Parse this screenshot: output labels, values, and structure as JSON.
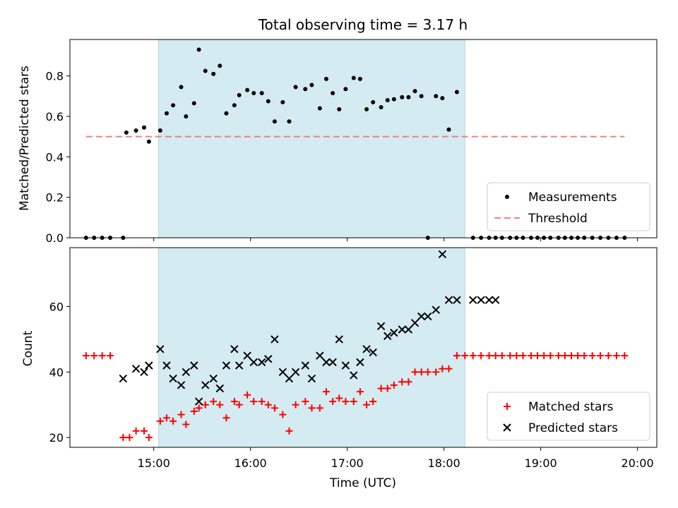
{
  "chart_data": [
    {
      "type": "scatter",
      "title": "Total observing time = 3.17 h",
      "xlabel": "",
      "ylabel": "Matched/Predicted stars",
      "xlim": [
        "14:08",
        "20:12"
      ],
      "ylim": [
        0,
        0.98
      ],
      "yticks": [
        0.0,
        0.2,
        0.4,
        0.6,
        0.8
      ],
      "ytick_labels": [
        "0.0",
        "0.2",
        "0.4",
        "0.6",
        "0.8"
      ],
      "xticks": [
        "15:00",
        "16:00",
        "17:00",
        "18:00",
        "19:00",
        "20:00"
      ],
      "highlight_span": [
        "15:03",
        "18:13"
      ],
      "highlight_color": "#d4ebf1",
      "legend": {
        "position": "lower right",
        "entries": [
          "Measurements",
          "Threshold"
        ]
      },
      "series": [
        {
          "name": "Measurements",
          "marker": "dot",
          "color": "#000000",
          "x": [
            "14:18",
            "14:23",
            "14:28",
            "14:33",
            "14:43",
            "14:41",
            "14:49",
            "14:54",
            "14:57",
            "15:04",
            "15:08",
            "15:12",
            "15:17",
            "15:20",
            "15:25",
            "15:28",
            "15:32",
            "15:37",
            "15:41",
            "15:45",
            "15:50",
            "15:53",
            "15:58",
            "16:02",
            "16:07",
            "16:11",
            "16:15",
            "16:20",
            "16:24",
            "16:28",
            "16:34",
            "16:38",
            "16:43",
            "16:47",
            "16:51",
            "16:55",
            "16:59",
            "17:04",
            "17:08",
            "17:12",
            "17:16",
            "17:21",
            "17:25",
            "17:29",
            "17:34",
            "17:38",
            "17:42",
            "17:46",
            "17:50",
            "17:55",
            "17:59",
            "18:03",
            "18:08",
            "18:18",
            "18:23",
            "18:28",
            "18:32",
            "18:36",
            "18:41",
            "18:45",
            "18:49",
            "18:54",
            "18:58",
            "19:02",
            "19:06",
            "19:11",
            "19:15",
            "19:19",
            "19:23",
            "19:27",
            "19:32",
            "19:37",
            "19:42",
            "19:47",
            "19:52"
          ],
          "y": [
            0.0,
            0.0,
            0.0,
            0.0,
            0.52,
            0.0,
            0.53,
            0.545,
            0.475,
            0.53,
            0.615,
            0.655,
            0.745,
            0.6,
            0.665,
            0.93,
            0.825,
            0.81,
            0.85,
            0.615,
            0.655,
            0.705,
            0.73,
            0.715,
            0.715,
            0.675,
            0.575,
            0.67,
            0.575,
            0.745,
            0.735,
            0.755,
            0.64,
            0.785,
            0.715,
            0.635,
            0.735,
            0.79,
            0.785,
            0.635,
            0.67,
            0.645,
            0.68,
            0.685,
            0.695,
            0.695,
            0.725,
            0.7,
            0.0,
            0.7,
            0.69,
            0.535,
            0.72,
            0.0,
            0.0,
            0.0,
            0.0,
            0.0,
            0.0,
            0.0,
            0.0,
            0.0,
            0.0,
            0.0,
            0.0,
            0.0,
            0.0,
            0.0,
            0.0,
            0.0,
            0.0,
            0.0,
            0.0,
            0.0,
            0.0
          ]
        },
        {
          "name": "Threshold",
          "type": "line",
          "style": "dashed",
          "color": "#f08080",
          "x": [
            "14:18",
            "19:52"
          ],
          "y": [
            0.5,
            0.5
          ]
        }
      ]
    },
    {
      "type": "scatter",
      "title": "",
      "xlabel": "Time (UTC)",
      "ylabel": "Count",
      "xlim": [
        "14:08",
        "20:12"
      ],
      "ylim": [
        17,
        78
      ],
      "yticks": [
        20,
        40,
        60
      ],
      "ytick_labels": [
        "20",
        "40",
        "60"
      ],
      "xticks": [
        "15:00",
        "16:00",
        "17:00",
        "18:00",
        "19:00",
        "20:00"
      ],
      "highlight_span": [
        "15:03",
        "18:13"
      ],
      "highlight_color": "#d4ebf1",
      "legend": {
        "position": "lower right",
        "entries": [
          "Matched stars",
          "Predicted stars"
        ]
      },
      "series": [
        {
          "name": "Matched stars",
          "marker": "plus",
          "color": "#ff0000",
          "x": [
            "14:18",
            "14:23",
            "14:28",
            "14:33",
            "14:41",
            "14:45",
            "14:49",
            "14:54",
            "14:57",
            "15:04",
            "15:08",
            "15:12",
            "15:17",
            "15:20",
            "15:25",
            "15:28",
            "15:32",
            "15:37",
            "15:41",
            "15:45",
            "15:50",
            "15:53",
            "15:58",
            "16:02",
            "16:07",
            "16:11",
            "16:15",
            "16:20",
            "16:24",
            "16:28",
            "16:34",
            "16:38",
            "16:43",
            "16:47",
            "16:51",
            "16:55",
            "16:59",
            "17:04",
            "17:08",
            "17:12",
            "17:16",
            "17:21",
            "17:25",
            "17:29",
            "17:34",
            "17:38",
            "17:42",
            "17:46",
            "17:50",
            "17:55",
            "17:59",
            "18:03",
            "18:08",
            "18:13",
            "18:18",
            "18:23",
            "18:28",
            "18:32",
            "18:36",
            "18:41",
            "18:45",
            "18:49",
            "18:54",
            "18:58",
            "19:02",
            "19:06",
            "19:11",
            "19:15",
            "19:19",
            "19:23",
            "19:27",
            "19:32",
            "19:37",
            "19:42",
            "19:47",
            "19:52"
          ],
          "y": [
            45,
            45,
            45,
            45,
            20,
            20,
            22,
            22,
            20,
            25,
            26,
            25,
            27,
            24,
            28,
            29,
            30,
            31,
            30,
            26,
            31,
            30,
            33,
            31,
            31,
            30,
            29,
            27,
            22,
            30,
            31,
            29,
            29,
            34,
            31,
            32,
            31,
            31,
            34,
            30,
            31,
            35,
            35,
            36,
            37,
            37,
            40,
            40,
            40,
            40,
            41,
            41,
            45,
            45,
            45,
            45,
            45,
            45,
            45,
            45,
            45,
            45,
            45,
            45,
            45,
            45,
            45,
            45,
            45,
            45,
            45,
            45,
            45,
            45,
            45,
            45
          ]
        },
        {
          "name": "Predicted stars",
          "marker": "x",
          "color": "#000000",
          "x": [
            "14:41",
            "14:49",
            "14:54",
            "14:57",
            "15:04",
            "15:08",
            "15:12",
            "15:17",
            "15:20",
            "15:25",
            "15:28",
            "15:32",
            "15:37",
            "15:41",
            "15:45",
            "15:50",
            "15:53",
            "15:58",
            "16:02",
            "16:07",
            "16:11",
            "16:15",
            "16:20",
            "16:24",
            "16:28",
            "16:34",
            "16:38",
            "16:43",
            "16:47",
            "16:51",
            "16:55",
            "16:59",
            "17:04",
            "17:08",
            "17:12",
            "17:16",
            "17:21",
            "17:25",
            "17:29",
            "17:34",
            "17:38",
            "17:42",
            "17:46",
            "17:50",
            "17:55",
            "17:59",
            "18:03",
            "18:08",
            "18:18",
            "18:23",
            "18:28",
            "18:32"
          ],
          "y": [
            38,
            41,
            40,
            42,
            47,
            42,
            38,
            36,
            40,
            42,
            31,
            36,
            38,
            35,
            42,
            47,
            42,
            45,
            43,
            43,
            44,
            50,
            40,
            38,
            40,
            42,
            38,
            45,
            43,
            43,
            50,
            42,
            39,
            43,
            47,
            46,
            54,
            51,
            52,
            53,
            53,
            55,
            57,
            57,
            59,
            76,
            62,
            62,
            62,
            62,
            62,
            62
          ]
        }
      ]
    }
  ]
}
